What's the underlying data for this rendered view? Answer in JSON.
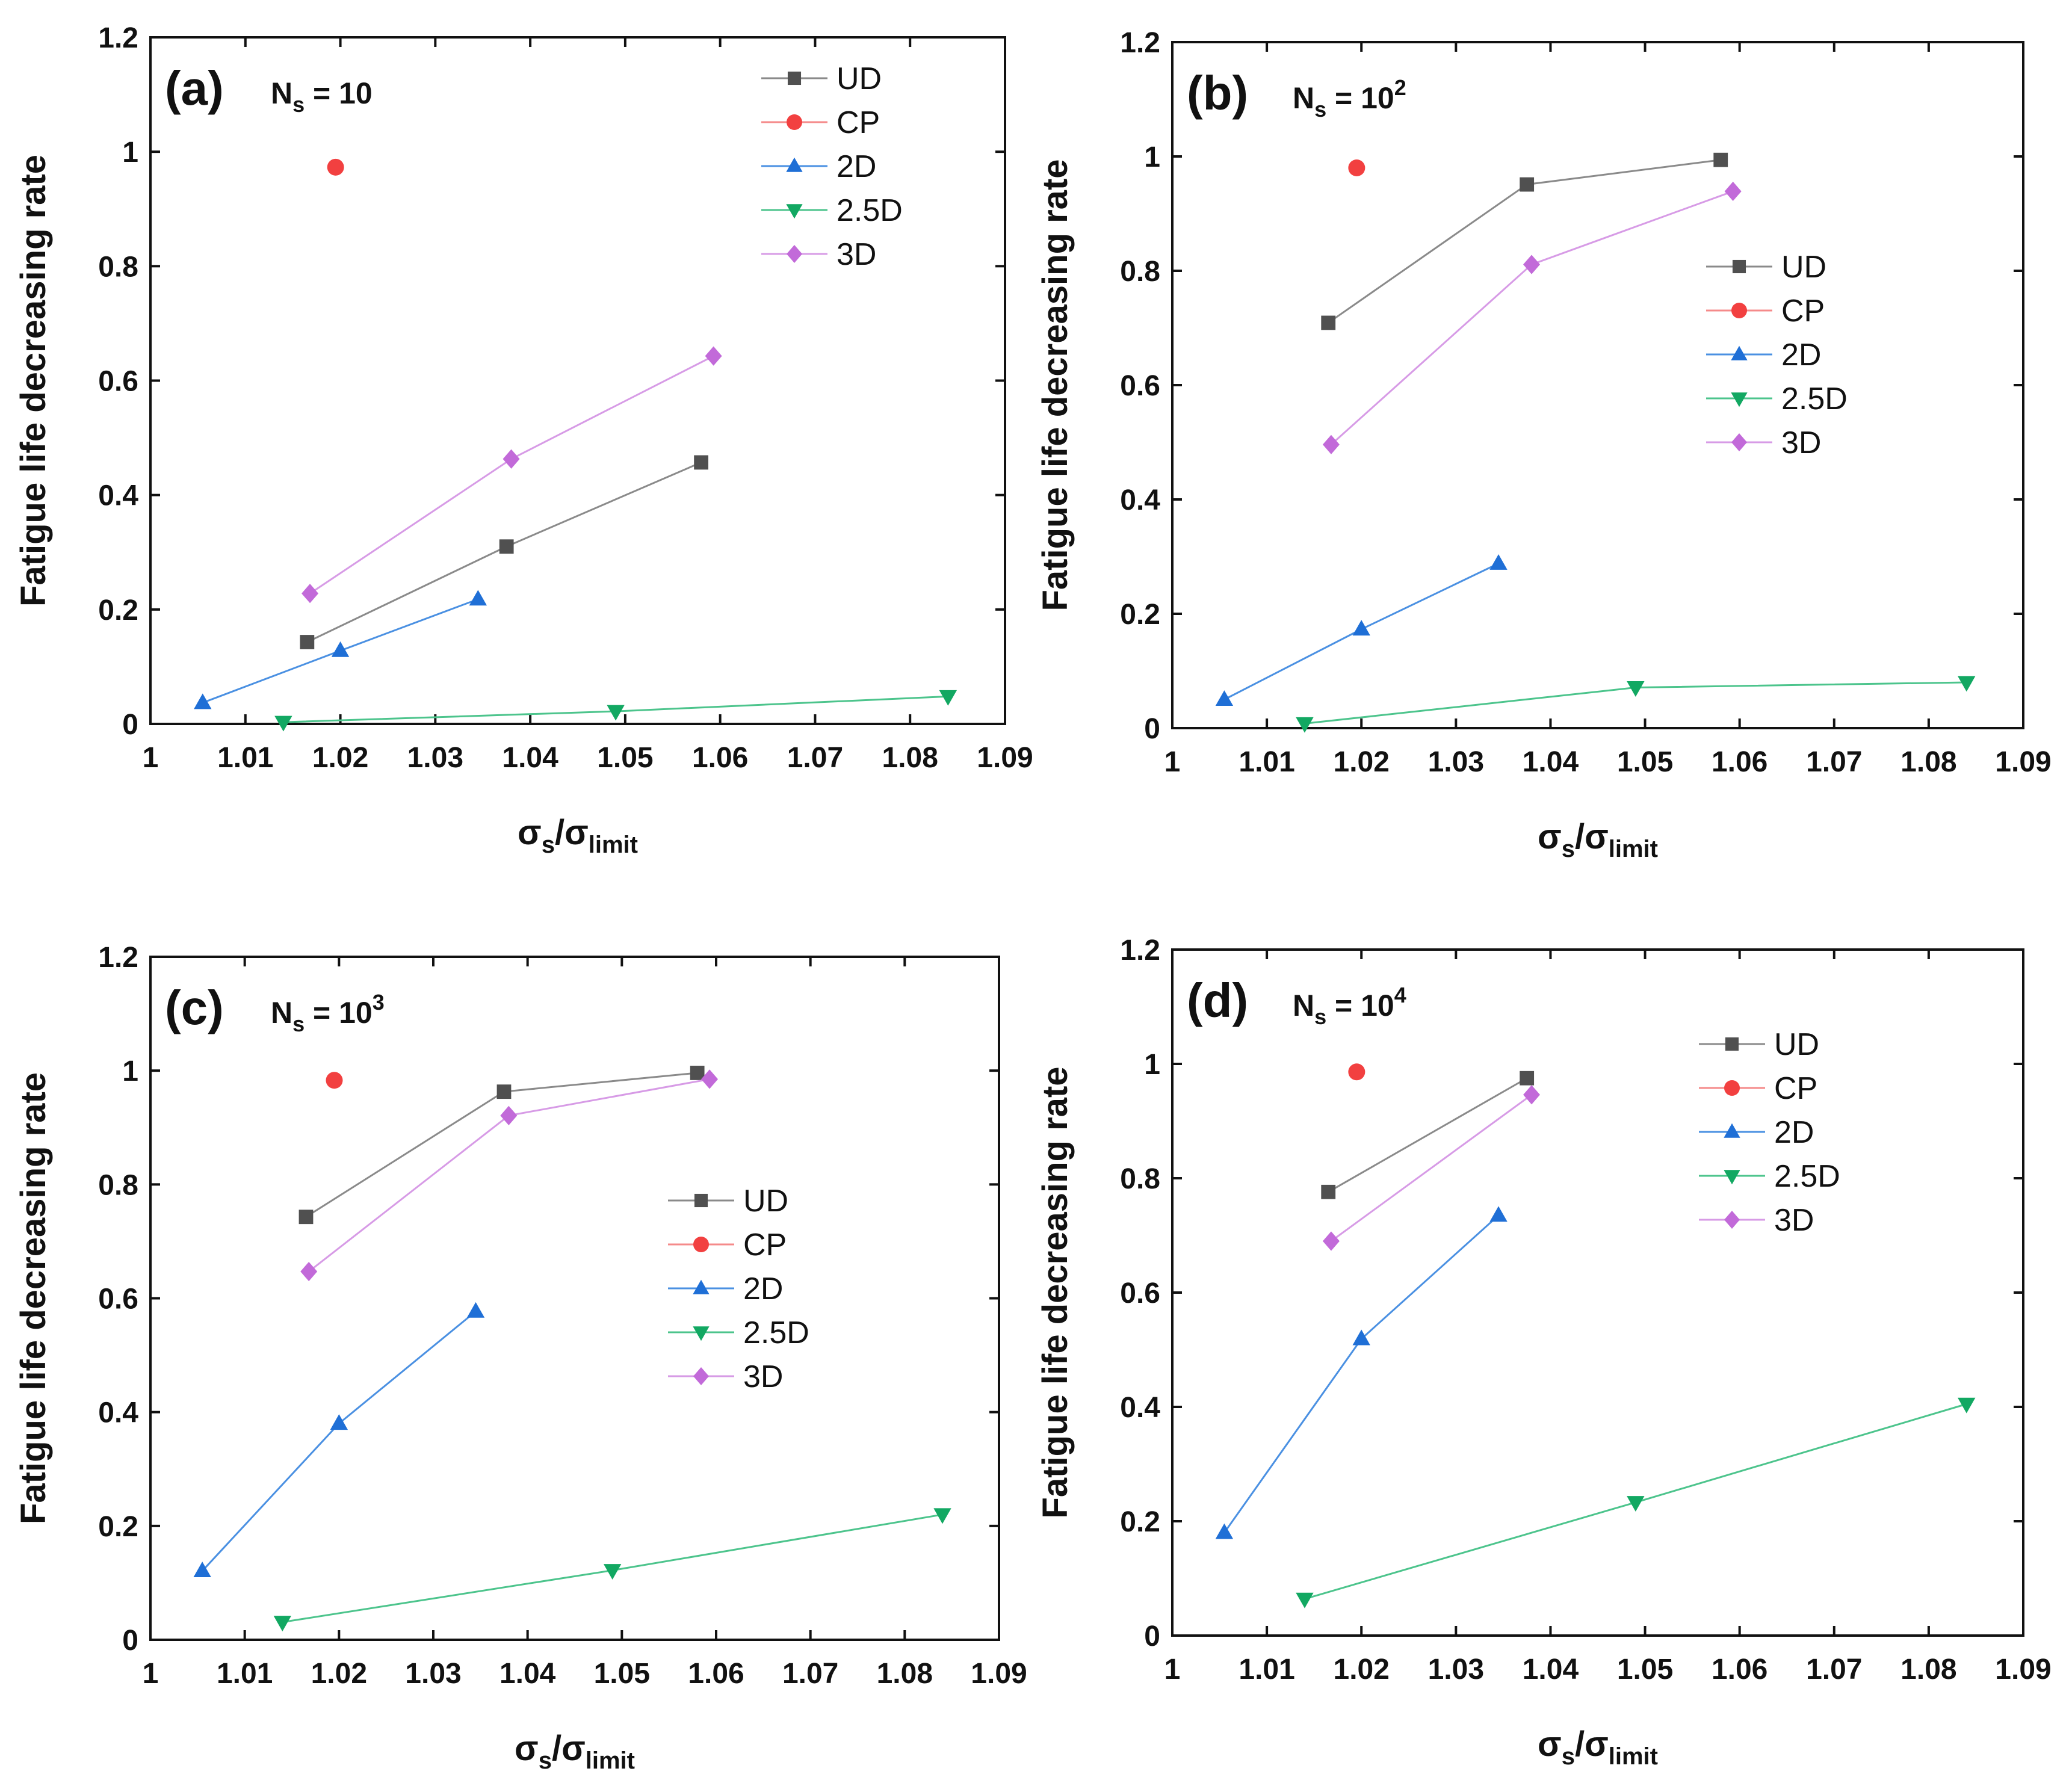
{
  "figure": {
    "y_axis_label": "Fatigue life decreasing rate",
    "x_axis_label_symbol": "σ",
    "x_axis_label_sub1": "s",
    "x_axis_label_slash": "/",
    "x_axis_label_sub2": "limit"
  },
  "series_styles": [
    {
      "name": "UD",
      "color": "#505050",
      "line_color": "#8a8a8a",
      "marker": "square"
    },
    {
      "name": "CP",
      "color": "#f24040",
      "line_color": "#f58a8a",
      "marker": "circle"
    },
    {
      "name": "2D",
      "color": "#1f6fd6",
      "line_color": "#4a90e2",
      "marker": "triangle-up"
    },
    {
      "name": "2.5D",
      "color": "#12a862",
      "line_color": "#4cc48c",
      "marker": "triangle-down"
    },
    {
      "name": "3D",
      "color": "#c26ad9",
      "line_color": "#d79be6",
      "marker": "diamond"
    }
  ],
  "chart_data": [
    {
      "panel": "(a)",
      "ns_base": "N",
      "ns_sub": "s",
      "ns_eq": " = 10",
      "ns_sup": "",
      "type": "line",
      "xlim": [
        1,
        1.09
      ],
      "ylim": [
        0,
        1.2
      ],
      "x_ticks": [
        "1",
        "1.01",
        "1.02",
        "1.03",
        "1.04",
        "1.05",
        "1.06",
        "1.07",
        "1.08",
        "1.09"
      ],
      "y_ticks": [
        "0",
        "0.2",
        "0.4",
        "0.6",
        "0.8",
        "1",
        "1.2"
      ],
      "legend_position": "top-right",
      "series": [
        {
          "name": "UD",
          "x": [
            1.0165,
            1.0375,
            1.058
          ],
          "y": [
            0.143,
            0.31,
            0.457
          ]
        },
        {
          "name": "CP",
          "x": [
            1.0195
          ],
          "y": [
            0.973
          ]
        },
        {
          "name": "2D",
          "x": [
            1.0055,
            1.02,
            1.0345
          ],
          "y": [
            0.037,
            0.128,
            0.218
          ]
        },
        {
          "name": "2.5D",
          "x": [
            1.014,
            1.049,
            1.084
          ],
          "y": [
            0.003,
            0.022,
            0.048
          ]
        },
        {
          "name": "3D",
          "x": [
            1.0168,
            1.038,
            1.0593
          ],
          "y": [
            0.228,
            0.463,
            0.643
          ]
        }
      ]
    },
    {
      "panel": "(b)",
      "ns_base": "N",
      "ns_sub": "s",
      "ns_eq": " = 10",
      "ns_sup": "2",
      "type": "line",
      "xlim": [
        1,
        1.09
      ],
      "ylim": [
        0,
        1.2
      ],
      "x_ticks": [
        "1",
        "1.01",
        "1.02",
        "1.03",
        "1.04",
        "1.05",
        "1.06",
        "1.07",
        "1.08",
        "1.09"
      ],
      "y_ticks": [
        "0",
        "0.2",
        "0.4",
        "0.6",
        "0.8",
        "1",
        "1.2"
      ],
      "legend_position": "center-right",
      "series": [
        {
          "name": "UD",
          "x": [
            1.0165,
            1.0375,
            1.058
          ],
          "y": [
            0.709,
            0.951,
            0.994
          ]
        },
        {
          "name": "CP",
          "x": [
            1.0195
          ],
          "y": [
            0.98
          ]
        },
        {
          "name": "2D",
          "x": [
            1.0055,
            1.02,
            1.0345
          ],
          "y": [
            0.05,
            0.173,
            0.288
          ]
        },
        {
          "name": "2.5D",
          "x": [
            1.014,
            1.049,
            1.084
          ],
          "y": [
            0.008,
            0.071,
            0.08
          ]
        },
        {
          "name": "3D",
          "x": [
            1.0168,
            1.038,
            1.0593
          ],
          "y": [
            0.496,
            0.811,
            0.939
          ]
        }
      ]
    },
    {
      "panel": "(c)",
      "ns_base": "N",
      "ns_sub": "s",
      "ns_eq": " = 10",
      "ns_sup": "3",
      "type": "line",
      "xlim": [
        1,
        1.09
      ],
      "ylim": [
        0,
        1.2
      ],
      "x_ticks": [
        "1",
        "1.01",
        "1.02",
        "1.03",
        "1.04",
        "1.05",
        "1.06",
        "1.07",
        "1.08",
        "1.09"
      ],
      "y_ticks": [
        "0",
        "0.2",
        "0.4",
        "0.6",
        "0.8",
        "1",
        "1.2"
      ],
      "legend_position": "center-right",
      "series": [
        {
          "name": "UD",
          "x": [
            1.0165,
            1.0375,
            1.058
          ],
          "y": [
            0.743,
            0.963,
            0.996
          ]
        },
        {
          "name": "CP",
          "x": [
            1.0195
          ],
          "y": [
            0.983
          ]
        },
        {
          "name": "2D",
          "x": [
            1.0055,
            1.02,
            1.0345
          ],
          "y": [
            0.121,
            0.38,
            0.577
          ]
        },
        {
          "name": "2.5D",
          "x": [
            1.014,
            1.049,
            1.084
          ],
          "y": [
            0.031,
            0.122,
            0.22
          ]
        },
        {
          "name": "3D",
          "x": [
            1.0168,
            1.038,
            1.0593
          ],
          "y": [
            0.647,
            0.921,
            0.985
          ]
        }
      ]
    },
    {
      "panel": "(d)",
      "ns_base": "N",
      "ns_sub": "s",
      "ns_eq": " = 10",
      "ns_sup": "4",
      "type": "line",
      "xlim": [
        1,
        1.09
      ],
      "ylim": [
        0,
        1.2
      ],
      "x_ticks": [
        "1",
        "1.01",
        "1.02",
        "1.03",
        "1.04",
        "1.05",
        "1.06",
        "1.07",
        "1.08",
        "1.09"
      ],
      "y_ticks": [
        "0",
        "0.2",
        "0.4",
        "0.6",
        "0.8",
        "1",
        "1.2"
      ],
      "legend_position": "top-right",
      "series": [
        {
          "name": "UD",
          "x": [
            1.0165,
            1.0375
          ],
          "y": [
            0.776,
            0.975
          ]
        },
        {
          "name": "CP",
          "x": [
            1.0195
          ],
          "y": [
            0.986
          ]
        },
        {
          "name": "2D",
          "x": [
            1.0055,
            1.02,
            1.0345
          ],
          "y": [
            0.18,
            0.519,
            0.735
          ]
        },
        {
          "name": "2.5D",
          "x": [
            1.014,
            1.049,
            1.084
          ],
          "y": [
            0.064,
            0.233,
            0.405
          ]
        },
        {
          "name": "3D",
          "x": [
            1.0168,
            1.038
          ],
          "y": [
            0.69,
            0.946
          ]
        }
      ]
    }
  ]
}
